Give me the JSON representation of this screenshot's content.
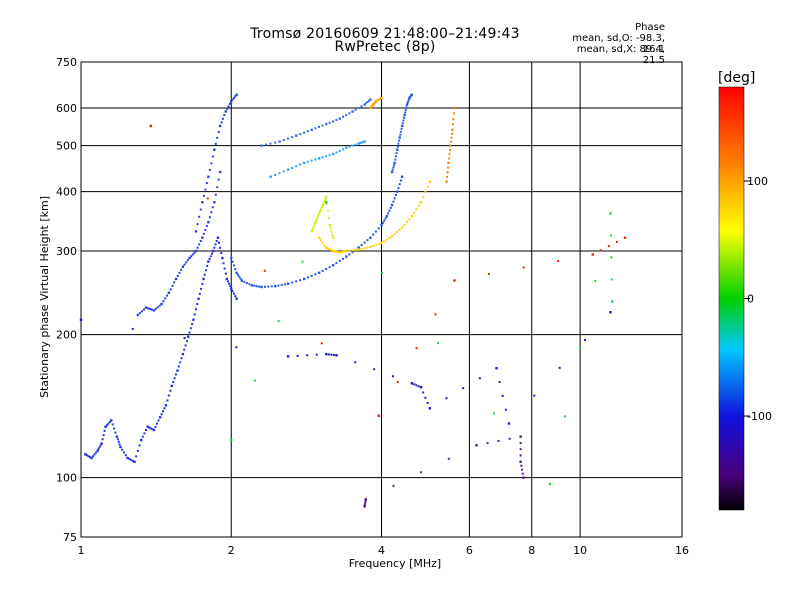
{
  "header": {
    "title_line1": "Tromsø 20160609 21:48:00–21:49:43",
    "title_line2": "RwPretec (8p)",
    "phase_title": "Phase",
    "phase_stat_o": "mean, sd,O: -98.3, 16.1",
    "phase_stat_x": "mean, sd,X:  89.4, 21.5"
  },
  "chart_data": {
    "type": "scatter",
    "title": "Tromsø 20160609 21:48:00–21:49:43",
    "subtitle": "RwPretec (8p)",
    "xlabel": "Frequency [MHz]",
    "ylabel": "Stationary phase Virtual Height [km]",
    "x_scale": "log",
    "y_scale": "log",
    "xlim": [
      1,
      16
    ],
    "ylim": [
      75,
      750
    ],
    "x_ticks": [
      1,
      2,
      4,
      6,
      8,
      10,
      16
    ],
    "x_tick_labels": [
      "1",
      "2",
      "4",
      "6",
      "8",
      "10",
      "16"
    ],
    "y_ticks": [
      75,
      100,
      200,
      300,
      400,
      500,
      600,
      750
    ],
    "y_tick_labels": [
      "75",
      "100",
      "200",
      "300",
      "400",
      "500",
      "600",
      "750"
    ],
    "grid": true,
    "colorbar": {
      "label": "[deg]",
      "range": [
        -180,
        180
      ],
      "ticks": [
        100,
        0,
        -100
      ],
      "tick_labels": [
        "100",
        "0",
        "-100"
      ]
    },
    "series": [
      {
        "name": "",
        "phase": -110,
        "color": "#2433e6",
        "x": [
          1.02,
          1.05,
          1.08,
          1.1,
          1.12,
          1.15,
          1.18,
          1.2,
          1.24,
          1.28,
          1.32,
          1.36,
          1.4,
          1.44,
          1.48,
          1.52,
          1.56,
          1.6,
          1.64,
          1.68,
          1.72,
          1.76,
          1.8,
          1.84,
          1.88,
          1.92,
          1.96,
          2.0,
          2.05
        ],
        "y": [
          112,
          110,
          114,
          118,
          128,
          132,
          122,
          116,
          110,
          108,
          120,
          128,
          126,
          134,
          142,
          156,
          168,
          182,
          198,
          215,
          238,
          262,
          285,
          300,
          320,
          290,
          262,
          250,
          238
        ]
      },
      {
        "name": "",
        "phase": -105,
        "color": "#2a3fe8",
        "x": [
          1.3,
          1.35,
          1.4,
          1.45,
          1.5,
          1.55,
          1.6,
          1.65,
          1.7,
          1.75,
          1.8,
          1.85,
          1.9
        ],
        "y": [
          220,
          228,
          225,
          232,
          245,
          262,
          278,
          290,
          300,
          320,
          345,
          380,
          440
        ]
      },
      {
        "name": "",
        "phase": -100,
        "color": "#2147e0",
        "x": [
          1.7,
          1.75,
          1.8,
          1.85,
          1.9,
          1.95,
          2.0,
          2.05
        ],
        "y": [
          330,
          380,
          430,
          490,
          550,
          590,
          620,
          640
        ]
      },
      {
        "name": "",
        "phase": -95,
        "color": "#2553ea",
        "x": [
          2.0,
          2.05,
          2.1,
          2.2,
          2.3,
          2.45,
          2.6,
          2.8,
          3.0,
          3.2,
          3.4,
          3.6,
          3.8,
          4.0,
          4.1,
          4.2,
          4.3,
          4.4
        ],
        "y": [
          290,
          270,
          260,
          254,
          252,
          253,
          256,
          262,
          270,
          280,
          292,
          305,
          320,
          340,
          355,
          375,
          400,
          430
        ]
      },
      {
        "name": "",
        "phase": -90,
        "color": "#2e5ff0",
        "x": [
          4.2,
          4.25,
          4.3,
          4.35,
          4.4,
          4.45,
          4.5,
          4.55,
          4.6
        ],
        "y": [
          440,
          460,
          490,
          520,
          550,
          580,
          610,
          630,
          640
        ]
      },
      {
        "name": "",
        "phase": -85,
        "color": "#3a6af2",
        "x": [
          2.3,
          2.5,
          2.7,
          2.9,
          3.1,
          3.3,
          3.5,
          3.7,
          3.8
        ],
        "y": [
          500,
          510,
          525,
          540,
          555,
          570,
          590,
          610,
          625
        ]
      },
      {
        "name": "",
        "phase": -70,
        "color": "#30a0f0",
        "x": [
          2.4,
          2.6,
          2.8,
          3.0,
          3.2,
          3.4,
          3.6,
          3.7
        ],
        "y": [
          430,
          445,
          460,
          470,
          480,
          495,
          505,
          510
        ]
      },
      {
        "name": "",
        "phase": 100,
        "color": "#ffd200",
        "x": [
          3.0,
          3.1,
          3.2,
          3.3,
          3.4,
          3.6,
          3.8,
          4.0,
          4.2,
          4.4,
          4.6,
          4.8,
          5.0
        ],
        "y": [
          320,
          305,
          300,
          298,
          300,
          302,
          306,
          312,
          322,
          336,
          355,
          380,
          420
        ]
      },
      {
        "name": "",
        "phase": 80,
        "color": "#d8ee10",
        "x": [
          2.9,
          2.95,
          3.0,
          3.05,
          3.1,
          3.15,
          3.2
        ],
        "y": [
          330,
          345,
          360,
          375,
          390,
          340,
          320
        ]
      },
      {
        "name": "",
        "phase": 120,
        "color": "#ffa000",
        "x": [
          3.8,
          3.85,
          3.9,
          4.0
        ],
        "y": [
          600,
          610,
          620,
          630
        ]
      },
      {
        "name": "",
        "phase": 130,
        "color": "#ff8800",
        "x": [
          5.4,
          5.45,
          5.5,
          5.55,
          5.6
        ],
        "y": [
          420,
          460,
          500,
          540,
          600
        ]
      },
      {
        "name": "",
        "phase": 170,
        "color": "#ee2000",
        "x": [
          1.38,
          3.95,
          5.6,
          10.6,
          12.3
        ],
        "y": [
          550,
          135,
          260,
          295,
          320
        ]
      },
      {
        "name": "",
        "phase": 20,
        "color": "#20d040",
        "x": [
          2.0,
          3.1,
          8.7,
          11.5,
          11.6
        ],
        "y": [
          120,
          380,
          97,
          360,
          235
        ]
      },
      {
        "name": "",
        "phase": -120,
        "color": "#1c1ccc",
        "x": [
          1.0,
          2.6,
          3.1,
          3.25,
          4.6,
          4.8,
          5.0,
          6.8,
          7.2,
          11.5
        ],
        "y": [
          215,
          180,
          182,
          181,
          158,
          155,
          140,
          170,
          130,
          223
        ]
      },
      {
        "name": "",
        "phase": -140,
        "color": "#5a1a8a",
        "x": [
          3.7,
          3.72,
          6.2,
          7.6,
          7.6,
          7.7
        ],
        "y": [
          87,
          90,
          117,
          122,
          108,
          100
        ]
      }
    ]
  }
}
